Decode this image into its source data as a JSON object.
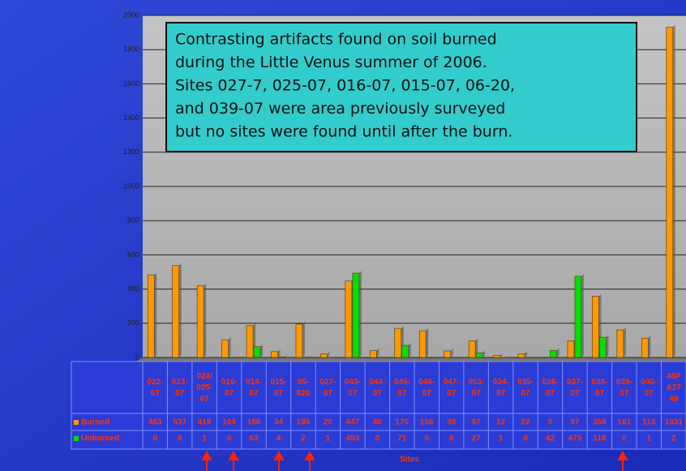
{
  "chart_data": {
    "type": "bar",
    "annotation": [
      "Contrasting artifacts found on soil burned",
      "during the Little Venus summer of 2006.",
      "Sites 027-7, 025-07, 016-07, 015-07, 06-20,",
      "and 039-07 were area previously surveyed",
      "but no sites were found until after the burn."
    ],
    "x_label": "Sites",
    "categories": [
      "022-\n07",
      "023-\n07",
      "024/\n025-\n07",
      "016-\n07",
      "014-\n07",
      "015-\n07",
      "06-\n020",
      "027-\n07",
      "043-\n07",
      "044-\n07",
      "045-\n07",
      "046-\n07",
      "047-\n07",
      "053-\n07",
      "034-\n07",
      "035-\n07",
      "036-\n07",
      "037-\n07",
      "038-\n07",
      "039-\n07",
      "040-\n07",
      "48P\nA27\n49"
    ],
    "series": [
      {
        "name": "Burned",
        "color": "#ff9900",
        "values": [
          483,
          537,
          419,
          104,
          186,
          34,
          195,
          20,
          447,
          40,
          170,
          156,
          38,
          97,
          12,
          22,
          0,
          97,
          358,
          161,
          113,
          1931
        ]
      },
      {
        "name": "Unburned",
        "color": "#00e000",
        "values": [
          0,
          0,
          1,
          0,
          63,
          4,
          2,
          1,
          493,
          0,
          71,
          0,
          0,
          27,
          1,
          0,
          42,
          475,
          118,
          0,
          1,
          2
        ]
      }
    ],
    "ylim": [
      0,
      2000
    ],
    "yticks": [
      0,
      200,
      400,
      600,
      800,
      1000,
      1200,
      1400,
      1600,
      1800,
      2000
    ],
    "grid": true
  }
}
